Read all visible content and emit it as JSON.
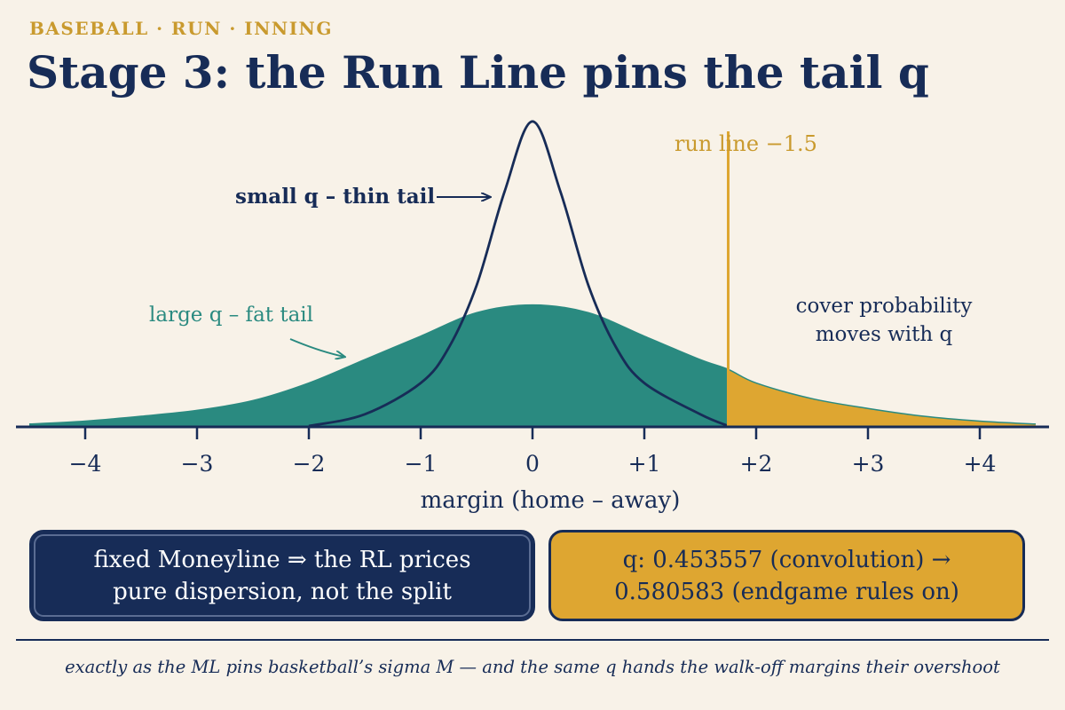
{
  "header": {
    "kicker": "BASEBALL · RUN · INNING",
    "title": "Stage 3: the Run Line pins the tail q"
  },
  "colors": {
    "navy": "#172c57",
    "teal": "#2a8a80",
    "gold": "#dea631",
    "gold_text": "#c99a2e",
    "background": "#f8f2e8"
  },
  "chart_data": {
    "type": "area",
    "xlabel": "margin (home – away)",
    "x_ticks": [
      "−4",
      "−3",
      "−2",
      "−1",
      "0",
      "+1",
      "+2",
      "+3",
      "+4"
    ],
    "x_tick_values": [
      -4,
      -3,
      -2,
      -1,
      0,
      1,
      2,
      3,
      4
    ],
    "xlim": [
      -4.5,
      4.5
    ],
    "threshold": {
      "label": "run line −1.5",
      "x": 1.75
    },
    "series": [
      {
        "name": "large q – fat tail",
        "style": "filled area",
        "x": [
          -4.5,
          -4,
          -3.5,
          -3,
          -2.5,
          -2,
          -1.5,
          -1,
          -0.5,
          0,
          0.5,
          1,
          1.5,
          1.75,
          2,
          2.5,
          3,
          3.5,
          4,
          4.5
        ],
        "y": [
          0.01,
          0.025,
          0.05,
          0.08,
          0.13,
          0.22,
          0.34,
          0.46,
          0.58,
          0.62,
          0.58,
          0.46,
          0.34,
          0.29,
          0.22,
          0.14,
          0.09,
          0.05,
          0.025,
          0.01
        ]
      },
      {
        "name": "small q – thin tail",
        "style": "outline",
        "x": [
          -2,
          -1.5,
          -1,
          -0.75,
          -0.5,
          -0.25,
          0,
          0.25,
          0.5,
          0.75,
          1,
          1.5,
          1.75
        ],
        "y": [
          0.0,
          0.06,
          0.22,
          0.4,
          0.72,
          1.2,
          1.56,
          1.2,
          0.72,
          0.4,
          0.22,
          0.06,
          0.0
        ]
      }
    ],
    "annotations": {
      "thin_tail": "small q – thin tail",
      "fat_tail": "large q – fat tail",
      "cover_line1": "cover probability",
      "cover_line2": "moves with q"
    }
  },
  "boxes": {
    "left_line1": "fixed Moneyline ⇒ the RL prices",
    "left_line2": "pure dispersion, not the split",
    "right_line1": "q: 0.453557 (convolution) →",
    "right_line2": "0.580583 (endgame rules on)"
  },
  "footnote": "exactly as the ML pins basketball’s sigma M — and the same q hands the walk-off margins their overshoot"
}
